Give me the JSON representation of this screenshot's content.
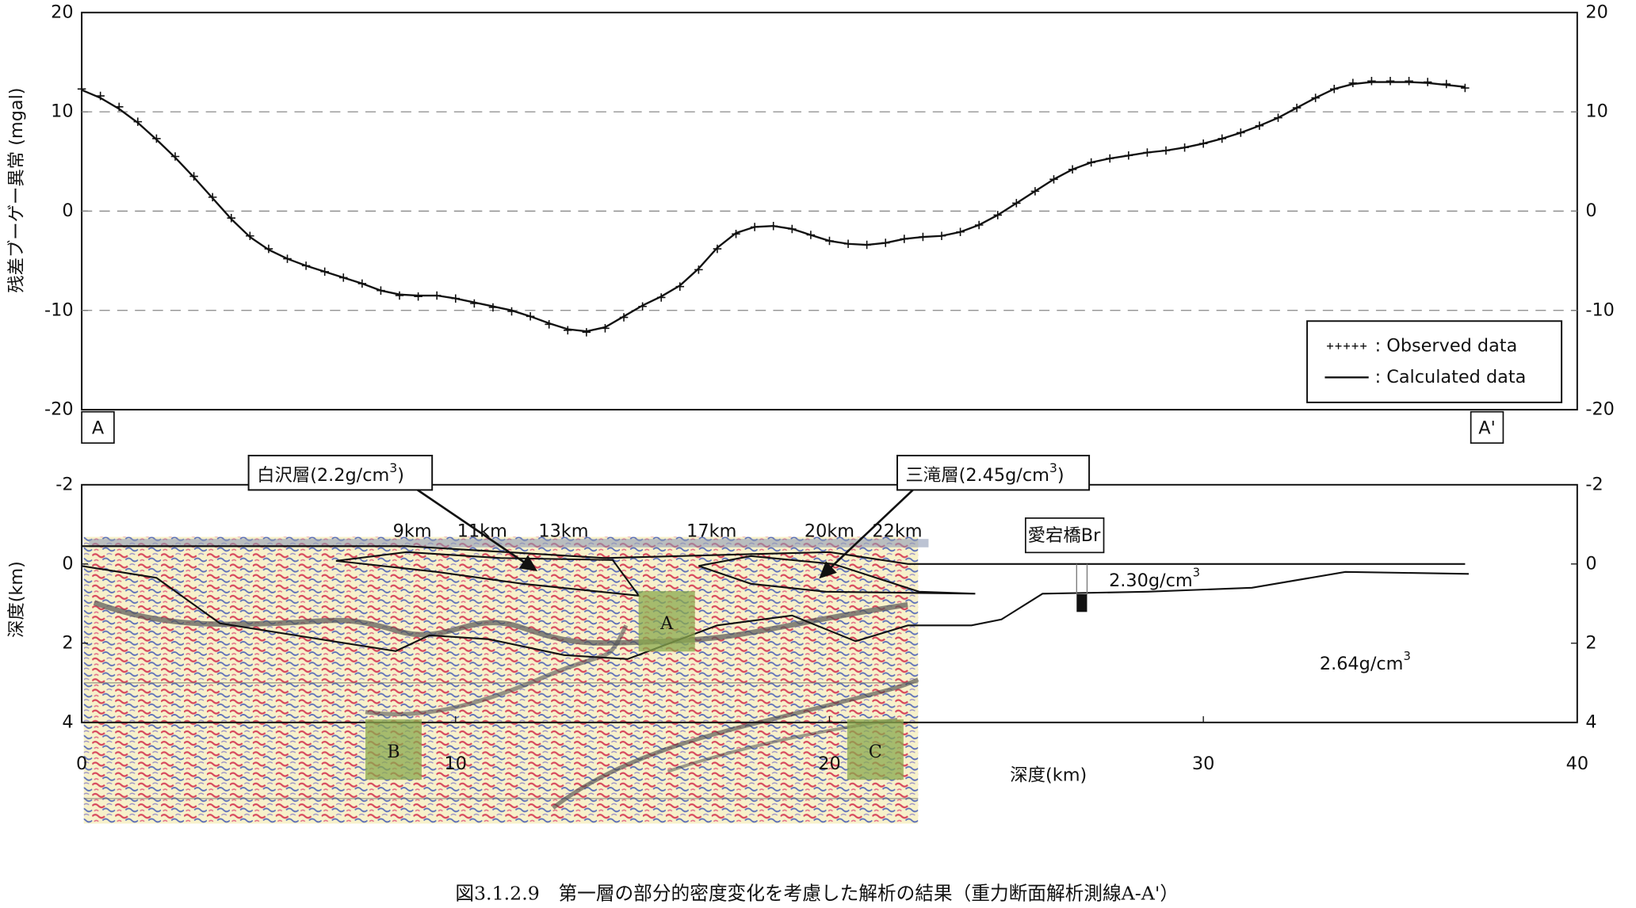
{
  "chart_data": [
    {
      "type": "line",
      "ylabel": "残差ブーゲー異常 (mgal)",
      "xlim": [
        0,
        40
      ],
      "ylim": [
        -20,
        20
      ],
      "yticks": [
        -20,
        -10,
        0,
        10,
        20
      ],
      "grid": true,
      "x": [
        0,
        0.5,
        1,
        1.5,
        2,
        2.5,
        3,
        3.5,
        4,
        4.5,
        5,
        5.5,
        6,
        6.5,
        7,
        7.5,
        8,
        8.5,
        9,
        9.5,
        10,
        10.5,
        11,
        11.5,
        12,
        12.5,
        13,
        13.5,
        14,
        14.5,
        15,
        15.5,
        16,
        16.5,
        17,
        17.5,
        18,
        18.5,
        19,
        19.5,
        20,
        20.5,
        21,
        21.5,
        22,
        22.5,
        23,
        23.5,
        24,
        24.5,
        25,
        25.5,
        26,
        26.5,
        27,
        27.5,
        28,
        28.5,
        29,
        29.5,
        30,
        30.5,
        31,
        31.5,
        32,
        32.5,
        33,
        33.5,
        34,
        34.5,
        35,
        35.5,
        36,
        36.5,
        37
      ],
      "series": [
        {
          "name": ": Observed data",
          "marker": "+",
          "color": "#111",
          "values": [
            12.3,
            11.6,
            10.5,
            9.0,
            7.3,
            5.5,
            3.5,
            1.4,
            -0.7,
            -2.5,
            -3.8,
            -4.8,
            -5.5,
            -6.1,
            -6.7,
            -7.3,
            -8.0,
            -8.5,
            -8.6,
            -8.5,
            -8.8,
            -9.3,
            -9.7,
            -10.1,
            -10.6,
            -11.4,
            -12.0,
            -12.2,
            -11.8,
            -10.7,
            -9.6,
            -8.7,
            -7.6,
            -5.9,
            -3.8,
            -2.3,
            -1.6,
            -1.5,
            -1.8,
            -2.4,
            -3.0,
            -3.3,
            -3.4,
            -3.2,
            -2.8,
            -2.6,
            -2.5,
            -2.1,
            -1.4,
            -0.4,
            0.8,
            2.0,
            3.2,
            4.2,
            4.9,
            5.3,
            5.6,
            5.9,
            6.1,
            6.4,
            6.8,
            7.3,
            7.9,
            8.6,
            9.4,
            10.4,
            11.4,
            12.3,
            12.9,
            13.1,
            13.1,
            13.1,
            13.0,
            12.8,
            12.4
          ]
        },
        {
          "name": ": Calculated data",
          "marker": "line",
          "color": "#111",
          "values": [
            12.2,
            11.4,
            10.3,
            8.9,
            7.2,
            5.4,
            3.4,
            1.3,
            -0.8,
            -2.6,
            -3.9,
            -4.8,
            -5.5,
            -6.1,
            -6.7,
            -7.3,
            -8.0,
            -8.4,
            -8.5,
            -8.5,
            -8.8,
            -9.2,
            -9.6,
            -10.0,
            -10.6,
            -11.3,
            -11.9,
            -12.1,
            -11.7,
            -10.6,
            -9.5,
            -8.6,
            -7.5,
            -5.8,
            -3.7,
            -2.2,
            -1.6,
            -1.5,
            -1.8,
            -2.4,
            -3.0,
            -3.3,
            -3.4,
            -3.2,
            -2.8,
            -2.6,
            -2.5,
            -2.1,
            -1.4,
            -0.4,
            0.8,
            2.0,
            3.2,
            4.2,
            4.9,
            5.3,
            5.6,
            5.9,
            6.1,
            6.4,
            6.8,
            7.3,
            7.9,
            8.6,
            9.4,
            10.4,
            11.4,
            12.3,
            12.8,
            13.0,
            13.0,
            13.0,
            12.9,
            12.7,
            12.5
          ]
        }
      ]
    },
    {
      "type": "section",
      "ylabel": "深度(km)",
      "xlabel": "深度(km)",
      "xlim": [
        0,
        40
      ],
      "xticks": [
        0,
        10,
        20,
        30,
        40
      ],
      "ylim": [
        -2,
        4
      ],
      "yticks": [
        -2,
        0,
        2,
        4
      ],
      "inverted": true,
      "series": [
        {
          "color": "#111",
          "x": [
            0,
            8.7,
            14,
            20,
            22.1,
            37
          ],
          "values": [
            -0.45,
            -0.45,
            -0.15,
            -0.3,
            0,
            0
          ]
        },
        {
          "color": "#111",
          "x": [
            0,
            2,
            3.7,
            8.4,
            9.3,
            10.9,
            12.9,
            14.6,
            17,
            19,
            20.7,
            22.1,
            23.8,
            24.6,
            25.7,
            28.5,
            31.3,
            33.8,
            37.1
          ],
          "values": [
            0.05,
            0.35,
            1.5,
            2.2,
            1.8,
            1.9,
            2.3,
            2.4,
            1.55,
            1.3,
            1.95,
            1.55,
            1.55,
            1.4,
            0.75,
            0.7,
            0.6,
            0.2,
            0.25
          ]
        },
        {
          "color": "#111",
          "x": [
            6.8,
            8.7,
            11.2,
            14.2,
            14.9,
            11.8,
            9.5,
            6.8
          ],
          "values": [
            -0.08,
            -0.3,
            -0.15,
            -0.1,
            0.8,
            0.5,
            0.2,
            -0.08
          ]
        },
        {
          "color": "#111",
          "x": [
            16.5,
            17.9,
            20.1,
            22.4,
            23.9,
            19.9,
            17.9,
            16.5
          ],
          "values": [
            0.05,
            -0.2,
            0,
            0.7,
            0.75,
            0.7,
            0.5,
            0.05
          ]
        }
      ],
      "ends": [
        "A",
        "A'"
      ],
      "layers": [
        {
          "text": "白沢層(2.2g/cm",
          "sup": "3",
          "tail": ")"
        },
        {
          "text": "三滝層(2.45g/cm",
          "sup": "3",
          "tail": ")"
        }
      ],
      "distances": [
        "9km",
        "11km",
        "13km",
        "17km",
        "20km",
        "22km"
      ],
      "bridge": "愛宕橋Br",
      "densities": [
        {
          "text": "2.30g/cm",
          "sup": "3"
        },
        {
          "text": "2.64g/cm",
          "sup": "3"
        }
      ],
      "zones": [
        "A",
        "B",
        "C"
      ]
    }
  ],
  "caption": "図3.1.2.9　第一層の部分的密度変化を考慮した解析の結果（重力断面解析測線A-A'）"
}
